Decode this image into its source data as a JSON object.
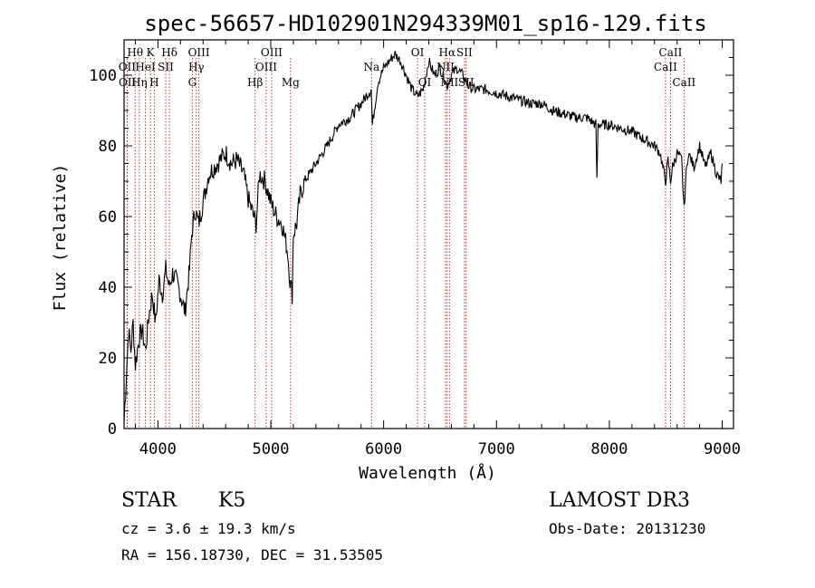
{
  "chart_data": {
    "type": "line",
    "title": "spec-56657-HD102901N294339M01_sp16-129.fits",
    "xlabel": "Wavelength (Å)",
    "ylabel": "Flux (relative)",
    "xlim": [
      3700,
      9100
    ],
    "ylim": [
      0,
      110
    ],
    "xticks": [
      4000,
      5000,
      6000,
      7000,
      8000,
      9000
    ],
    "yticks": [
      0,
      20,
      40,
      60,
      80,
      100
    ],
    "grid": false,
    "line_color": "#000000",
    "marker_color": "#b22222",
    "series": [
      {
        "x": [
          3700,
          3720,
          3740,
          3760,
          3780,
          3800,
          3830,
          3860,
          3890,
          3920,
          3950,
          3980,
          4010,
          4040,
          4070,
          4100,
          4130,
          4160,
          4200,
          4240,
          4280,
          4300,
          4330,
          4360,
          4400,
          4450,
          4500,
          4550,
          4600,
          4650,
          4700,
          4760,
          4800,
          4850,
          4870,
          4900,
          4950,
          5000,
          5050,
          5100,
          5150,
          5170,
          5190,
          5200,
          5230,
          5260,
          5300,
          5400,
          5500,
          5600,
          5700,
          5800,
          5890,
          5900,
          5950,
          6000,
          6050,
          6100,
          6150,
          6200,
          6250,
          6300,
          6350,
          6400,
          6450,
          6500,
          6563,
          6600,
          6650,
          6700,
          6750,
          6800,
          6900,
          7000,
          7100,
          7200,
          7300,
          7400,
          7500,
          7600,
          7700,
          7800,
          7880,
          7890,
          7900,
          8000,
          8100,
          8200,
          8300,
          8400,
          8450,
          8498,
          8520,
          8542,
          8560,
          8600,
          8640,
          8662,
          8680,
          8700,
          8750,
          8800,
          8850,
          8900,
          8950,
          8990,
          9000
        ],
        "values": [
          2,
          15,
          28,
          22,
          30,
          18,
          25,
          28,
          22,
          32,
          38,
          30,
          42,
          38,
          45,
          40,
          44,
          42,
          38,
          33,
          45,
          55,
          62,
          58,
          64,
          72,
          74,
          76,
          78,
          75,
          76,
          72,
          65,
          60,
          58,
          72,
          70,
          64,
          60,
          58,
          50,
          42,
          38,
          55,
          58,
          66,
          70,
          75,
          80,
          86,
          88,
          92,
          96,
          86,
          98,
          102,
          104,
          106,
          104,
          100,
          96,
          94,
          96,
          104,
          100,
          102,
          97,
          100,
          102,
          100,
          97,
          96,
          96,
          95,
          94,
          93,
          92,
          92,
          90,
          89,
          88,
          88,
          86,
          70,
          86,
          86,
          85,
          84,
          82,
          80,
          78,
          70,
          76,
          70,
          74,
          78,
          76,
          62,
          72,
          78,
          74,
          80,
          74,
          78,
          72,
          70,
          75
        ]
      }
    ],
    "line_markers": [
      {
        "label": "Hθ",
        "x": 3798,
        "row": 0
      },
      {
        "label": "OII",
        "x": 3727,
        "row": 1
      },
      {
        "label": "OII",
        "x": 3729,
        "row": 2
      },
      {
        "label": "K",
        "x": 3934,
        "row": 0
      },
      {
        "label": "HeI",
        "x": 3889,
        "row": 1
      },
      {
        "label": "Hη",
        "x": 3835,
        "row": 2
      },
      {
        "label": "SII",
        "x": 4069,
        "row": 1
      },
      {
        "label": "H",
        "x": 3968,
        "row": 2
      },
      {
        "label": "Hδ",
        "x": 4102,
        "row": 0
      },
      {
        "label": "OIII",
        "x": 4363,
        "row": 0
      },
      {
        "label": "Hγ",
        "x": 4340,
        "row": 1
      },
      {
        "label": "G",
        "x": 4305,
        "row": 2
      },
      {
        "label": "Hβ",
        "x": 4861,
        "row": 2
      },
      {
        "label": "OIII",
        "x": 5007,
        "row": 0
      },
      {
        "label": "OIII",
        "x": 4959,
        "row": 1
      },
      {
        "label": "Mg",
        "x": 5175,
        "row": 2
      },
      {
        "label": "Na",
        "x": 5893,
        "row": 1
      },
      {
        "label": "OI",
        "x": 6300,
        "row": 0
      },
      {
        "label": "OI",
        "x": 6364,
        "row": 2
      },
      {
        "label": "Hα",
        "x": 6563,
        "row": 0
      },
      {
        "label": "NII",
        "x": 6548,
        "row": 1
      },
      {
        "label": "NII",
        "x": 6583,
        "row": 2
      },
      {
        "label": "SII",
        "x": 6716,
        "row": 0
      },
      {
        "label": "SII",
        "x": 6731,
        "row": 2
      },
      {
        "label": "CaII",
        "x": 8542,
        "row": 0
      },
      {
        "label": "CaII",
        "x": 8498,
        "row": 1
      },
      {
        "label": "CaII",
        "x": 8662,
        "row": 2
      }
    ]
  },
  "footer": {
    "object_class": "STAR",
    "subclass": "K5",
    "survey": "LAMOST DR3",
    "redshift": "cz = 3.6 ± 19.3 km/s",
    "obs_date": "Obs-Date: 20131230",
    "coords": "RA = 156.18730, DEC =  31.53505"
  }
}
